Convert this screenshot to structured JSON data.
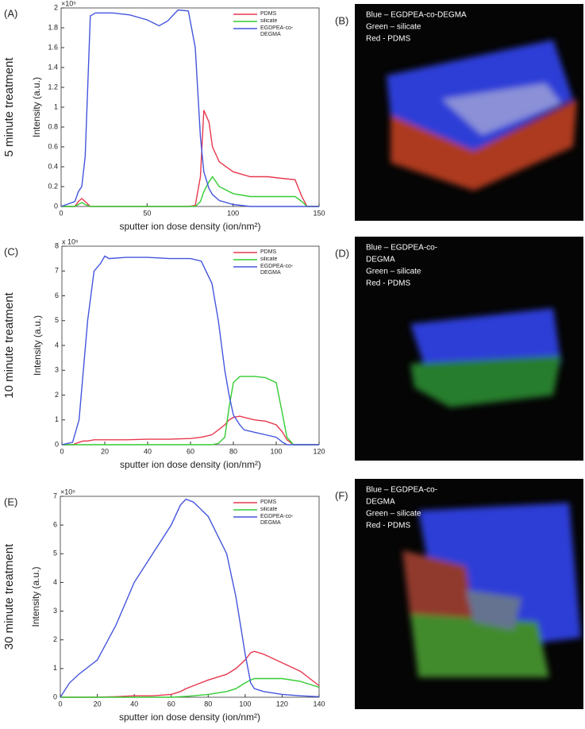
{
  "chart_data": [
    {
      "type": "line",
      "panel": "(A)",
      "row_label": "5 minute treatment",
      "y_multiplier": "×10⁵",
      "xlabel": "sputter ion dose density  (ion/nm²)",
      "ylabel": "Intensity (a.u.)",
      "xlim": [
        0,
        150
      ],
      "xticks": [
        0,
        50,
        100,
        150
      ],
      "ylim": [
        0,
        2
      ],
      "yticks": [
        0,
        0.2,
        0.4,
        0.6,
        0.8,
        1,
        1.2,
        1.4,
        1.6,
        1.8,
        2
      ],
      "legend": "upper right",
      "x": [
        0,
        8,
        10,
        12,
        14,
        17,
        20,
        30,
        40,
        50,
        57,
        62,
        68,
        74,
        78,
        81,
        83,
        86,
        88,
        92,
        100,
        110,
        120,
        130,
        136,
        140,
        143,
        150
      ],
      "series": [
        {
          "name": "PDMS",
          "color": "#e8384f",
          "values": [
            0,
            0,
            0.05,
            0.08,
            0.05,
            0,
            0,
            0,
            0,
            0,
            0,
            0,
            0,
            0,
            0.01,
            0.3,
            0.97,
            0.85,
            0.6,
            0.45,
            0.35,
            0.3,
            0.3,
            0.28,
            0.27,
            0.1,
            0,
            0
          ]
        },
        {
          "name": "silicate",
          "color": "#33cc33",
          "values": [
            0,
            0,
            0.02,
            0.04,
            0.02,
            0,
            0,
            0,
            0,
            0,
            0,
            0,
            0,
            0,
            0,
            0.05,
            0.15,
            0.25,
            0.3,
            0.2,
            0.13,
            0.1,
            0.1,
            0.1,
            0.1,
            0.05,
            0,
            0
          ]
        },
        {
          "name": "EGDPEA-co-DEGMA",
          "color": "#4455dd",
          "values": [
            0,
            0.05,
            0.15,
            0.2,
            0.5,
            1.92,
            1.95,
            1.95,
            1.93,
            1.88,
            1.82,
            1.87,
            1.98,
            1.97,
            1.6,
            0.7,
            0.35,
            0.18,
            0.12,
            0.06,
            0.02,
            0,
            0,
            0,
            0,
            0,
            0,
            0
          ]
        }
      ]
    },
    {
      "type": "line",
      "panel": "(C)",
      "row_label": "10 minute treatment",
      "y_multiplier": "x 10⁵",
      "xlabel": "sputter ion dose density  (ion/nm²)",
      "ylabel": "Intensity (a.u.)",
      "xlim": [
        0,
        120
      ],
      "xticks": [
        0,
        20,
        40,
        60,
        80,
        100,
        120
      ],
      "ylim": [
        0,
        8
      ],
      "yticks": [
        0,
        1,
        2,
        3,
        4,
        5,
        6,
        7,
        8
      ],
      "legend": "upper right",
      "x": [
        0,
        5,
        8,
        10,
        12,
        15,
        18,
        20,
        22,
        30,
        40,
        50,
        60,
        65,
        70,
        73,
        76,
        78,
        80,
        83,
        85,
        90,
        95,
        100,
        103,
        105,
        108,
        112,
        120
      ],
      "series": [
        {
          "name": "PDMS",
          "color": "#e8384f",
          "values": [
            0,
            0,
            0.1,
            0.15,
            0.15,
            0.2,
            0.2,
            0.2,
            0.2,
            0.2,
            0.22,
            0.22,
            0.25,
            0.3,
            0.4,
            0.6,
            0.8,
            1,
            1.1,
            1.15,
            1.1,
            1,
            0.95,
            0.8,
            0.5,
            0.2,
            0,
            0,
            0
          ]
        },
        {
          "name": "silicate",
          "color": "#33cc33",
          "values": [
            0,
            0,
            0,
            0,
            0,
            0,
            0,
            0,
            0,
            0,
            0,
            0,
            0,
            0,
            0,
            0.05,
            0.3,
            1.5,
            2.5,
            2.75,
            2.75,
            2.75,
            2.7,
            2.5,
            1.2,
            0.3,
            0,
            0,
            0
          ]
        },
        {
          "name": "EGDPEA-co-DEGMA",
          "color": "#4455dd",
          "values": [
            0,
            0.1,
            1,
            3,
            5,
            7,
            7.3,
            7.6,
            7.5,
            7.55,
            7.55,
            7.5,
            7.5,
            7.4,
            6.5,
            5,
            3,
            2,
            1.2,
            0.8,
            0.6,
            0.5,
            0.4,
            0.3,
            0.1,
            0,
            0,
            0,
            0
          ]
        }
      ]
    },
    {
      "type": "line",
      "panel": "(E)",
      "row_label": "30 minute treatment",
      "y_multiplier": "×10⁵",
      "xlabel": "sputter ion dose density  (ion/nm²)",
      "ylabel": "Intensity (a.u.)",
      "xlim": [
        0,
        140
      ],
      "xticks": [
        0,
        20,
        40,
        60,
        80,
        100,
        120,
        140
      ],
      "ylim": [
        0,
        7
      ],
      "yticks": [
        0,
        1,
        2,
        3,
        4,
        5,
        6,
        7
      ],
      "legend": "upper right",
      "x": [
        0,
        5,
        10,
        20,
        30,
        40,
        50,
        60,
        65,
        68,
        72,
        80,
        90,
        95,
        100,
        103,
        105,
        110,
        120,
        130,
        140
      ],
      "series": [
        {
          "name": "PDMS",
          "color": "#e8384f",
          "values": [
            0,
            0,
            0,
            0,
            0.02,
            0.05,
            0.05,
            0.1,
            0.2,
            0.3,
            0.4,
            0.6,
            0.8,
            1,
            1.3,
            1.55,
            1.6,
            1.5,
            1.2,
            0.9,
            0.4
          ]
        },
        {
          "name": "silicate",
          "color": "#33cc33",
          "values": [
            0,
            0,
            0,
            0,
            0,
            0,
            0,
            0,
            0.02,
            0.03,
            0.05,
            0.1,
            0.2,
            0.3,
            0.5,
            0.6,
            0.65,
            0.65,
            0.65,
            0.55,
            0.35
          ]
        },
        {
          "name": "EGDPEA-co-DEGMA",
          "color": "#4455dd",
          "values": [
            0,
            0.5,
            0.8,
            1.3,
            2.5,
            4,
            5,
            6,
            6.7,
            6.9,
            6.8,
            6.3,
            5,
            3.5,
            1.5,
            0.5,
            0.3,
            0.2,
            0.1,
            0.05,
            0.02
          ]
        }
      ]
    }
  ],
  "image_panels": [
    {
      "label": "(B)",
      "legend": [
        "Blue – EGDPEA-co-DEGMA",
        "Green – silicate",
        "Red - PDMS"
      ]
    },
    {
      "label": "(D)",
      "legend": [
        "Blue – EGDPEA-co-",
        "DEGMA",
        "Green – silicate",
        "Red - PDMS"
      ]
    },
    {
      "label": "(F)",
      "legend": [
        "Blue – EGDPEA-co-",
        "DEGMA",
        "Green – silicate",
        "Red - PDMS"
      ]
    }
  ]
}
